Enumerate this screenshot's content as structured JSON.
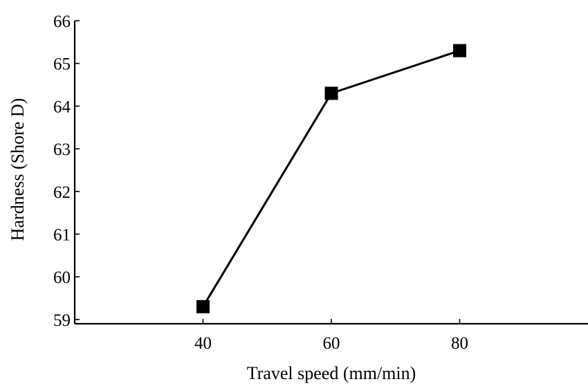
{
  "chart_data": {
    "type": "line",
    "title": "",
    "xlabel": "Travel speed (mm/min)",
    "ylabel": "Hardness (Shore D)",
    "x": [
      40,
      60,
      80
    ],
    "xticks": [
      "40",
      "60",
      "80"
    ],
    "xlim": [
      20,
      100
    ],
    "ylim": [
      58.9,
      66
    ],
    "yticks": [
      "59",
      "60",
      "61",
      "62",
      "63",
      "64",
      "65",
      "66"
    ],
    "series": [
      {
        "values": [
          59.3,
          64.3,
          65.3
        ],
        "marker": "square",
        "color": "#000000"
      }
    ],
    "grid": false,
    "legend": "none"
  }
}
